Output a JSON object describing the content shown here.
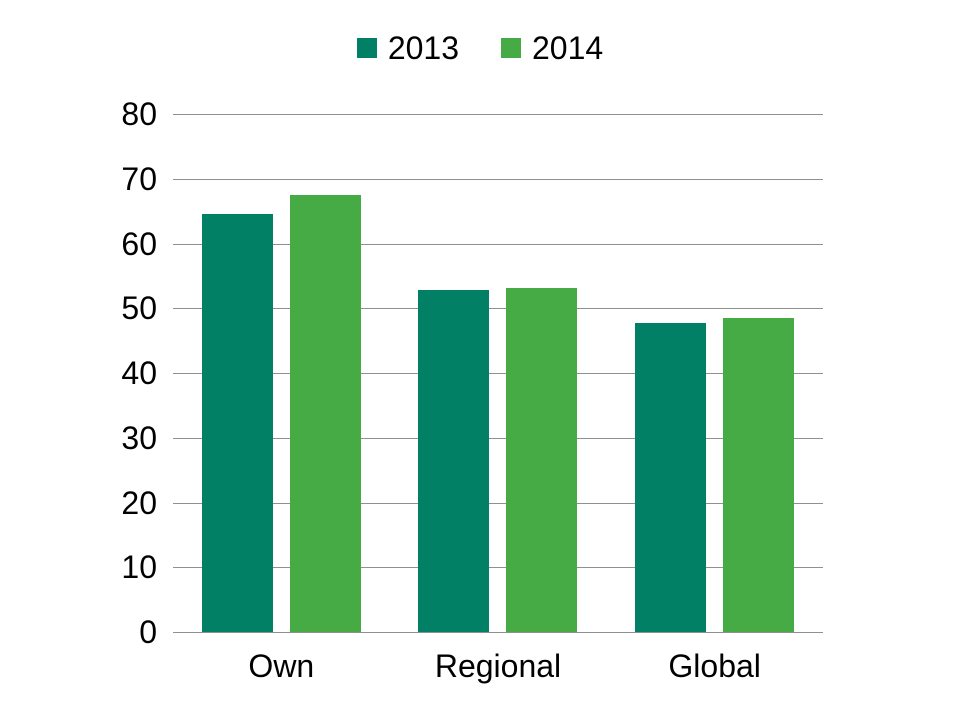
{
  "chart_data": {
    "type": "bar",
    "categories": [
      "Own",
      "Regional",
      "Global"
    ],
    "series": [
      {
        "name": "2013",
        "color": "#028066",
        "values": [
          64.5,
          52.8,
          47.8
        ]
      },
      {
        "name": "2014",
        "color": "#46AB45",
        "values": [
          67.5,
          53.2,
          48.5
        ]
      }
    ],
    "title": "",
    "xlabel": "",
    "ylabel": "",
    "ylim": [
      0,
      80
    ],
    "ytick_step": 10,
    "ytick_labels": [
      "0",
      "10",
      "20",
      "30",
      "40",
      "50",
      "60",
      "70",
      "80"
    ],
    "grid": true,
    "legend_position": "top-center"
  },
  "colors": {
    "gridline": "#909090",
    "axis_text": "#000000",
    "background": "#ffffff"
  }
}
